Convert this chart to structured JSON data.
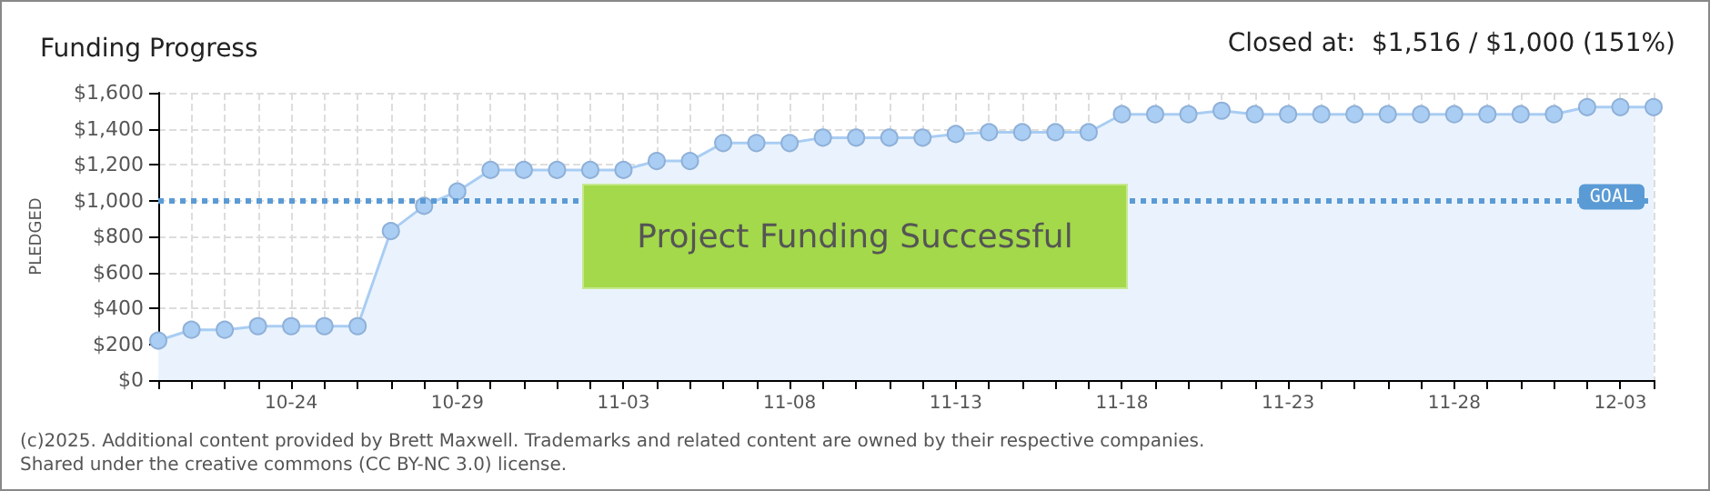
{
  "chart_data": {
    "type": "area",
    "title": "Funding Progress",
    "ylabel": "PLEDGED",
    "annotations": [
      "Closed at:  $1,516 / $1,000 (151%)",
      "Project Funding Successful",
      "(c)2025. Additional content provided by Brett Maxwell. Trademarks and related content are owned by their respective companies.",
      "Shared under the creative commons (CC BY-NC 3.0) license."
    ],
    "categories": [
      null,
      null,
      null,
      null,
      "10-24",
      null,
      null,
      null,
      null,
      "10-29",
      null,
      null,
      null,
      null,
      "11-03",
      null,
      null,
      null,
      null,
      "11-08",
      null,
      null,
      null,
      null,
      "11-13",
      null,
      null,
      null,
      null,
      "11-18",
      null,
      null,
      null,
      null,
      "11-23",
      null,
      null,
      null,
      null,
      "11-28",
      null,
      null,
      null,
      null,
      "12-03",
      null
    ],
    "series": [
      {
        "color": "#a9cdf3",
        "values": [
          220,
          280,
          280,
          300,
          300,
          300,
          300,
          830,
          970,
          1050,
          1170,
          1170,
          1170,
          1170,
          1170,
          1220,
          1220,
          1320,
          1320,
          1320,
          1350,
          1350,
          1350,
          1350,
          1370,
          1380,
          1380,
          1380,
          1380,
          1480,
          1480,
          1480,
          1500,
          1480,
          1480,
          1480,
          1480,
          1480,
          1480,
          1480,
          1480,
          1480,
          1480,
          1520,
          1520,
          1520
        ]
      }
    ],
    "ylim": [
      0,
      1600
    ],
    "yticks": [
      {
        "value": 0,
        "label": "$0"
      },
      {
        "value": 200,
        "label": "$200"
      },
      {
        "value": 400,
        "label": "$400"
      },
      {
        "value": 600,
        "label": "$600"
      },
      {
        "value": 800,
        "label": "$800"
      },
      {
        "value": 1000,
        "label": "$1,000"
      },
      {
        "value": 1200,
        "label": "$1,200"
      },
      {
        "value": 1400,
        "label": "$1,400"
      },
      {
        "value": 1600,
        "label": "$1,600"
      }
    ],
    "ref_lines": [
      {
        "axis": "y",
        "value": 1000,
        "label": "GOAL",
        "color": "#5b9bd5",
        "line_style": "dotted"
      }
    ],
    "grid": true,
    "marker": "circle",
    "line_style": "solid"
  }
}
